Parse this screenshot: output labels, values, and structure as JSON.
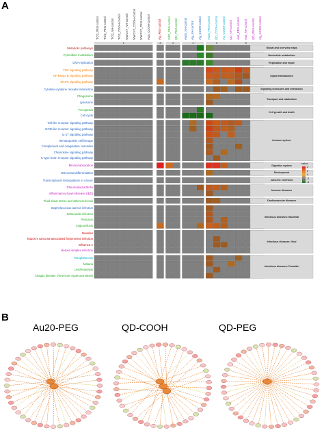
{
  "panel_a": {
    "letter": "A",
    "columns": [
      {
        "label": "TiO2_PEG-control",
        "color": "#333333"
      },
      {
        "label": "TiO2_PEG-control",
        "color": "#333333"
      },
      {
        "label": "TiO2_NH-control",
        "color": "#333333"
      },
      {
        "label": "TiO2_COOH-control",
        "color": "#333333"
      },
      {
        "label": "MWCNT_NH-control",
        "color": "#333333"
      },
      {
        "label": "MWCNT_COOH-control",
        "color": "#333333"
      },
      {
        "label": "MWCNT_PEG-control",
        "color": "#333333"
      },
      {
        "label": "AuS_COOH-control",
        "color": "#333333"
      },
      {
        "label": "Ag_PEG-control",
        "color": "#d00000"
      },
      {
        "label": "CdO_PEG-control",
        "color": "#22aa22"
      },
      {
        "label": "QD_PEG-control",
        "color": "#22aa22"
      },
      {
        "label": "Au20_NH-control",
        "color": "#1f5fbf"
      },
      {
        "label": "Ag_NH-control",
        "color": "#1f5fbf"
      },
      {
        "label": "Ag_COOH-control",
        "color": "#1f5fbf"
      },
      {
        "label": "Au20_PEG-control",
        "color": "#00b0d0"
      },
      {
        "label": "QD_COOH-control",
        "color": "#00b0d0"
      },
      {
        "label": "Au_COOH-control",
        "color": "#00b0d0"
      },
      {
        "label": "QD_NH-control",
        "color": "#c020c0"
      },
      {
        "label": "Au5_PEG-control",
        "color": "#c020c0"
      },
      {
        "label": "Au5_NH-control",
        "color": "#c020c0"
      },
      {
        "label": "QD_PEG-control",
        "color": "#c020c0"
      },
      {
        "label": "Ag_COOH-control",
        "color": "#c020c0"
      }
    ],
    "group_numbers": [
      "1",
      "2",
      "3",
      "4",
      "5",
      "6"
    ],
    "rows": [
      {
        "label": "Metabolic pathways",
        "color": "#b02020",
        "group": 0
      },
      {
        "label": "Pyrimidine metabolism",
        "color": "#22aa22",
        "group": 1
      },
      {
        "label": "DNA replication",
        "color": "#1f5fbf",
        "group": 2
      },
      {
        "label": "TNF signaling pathway",
        "color": "#ff7f00",
        "group": 3
      },
      {
        "label": "NF-kappa B signaling pathway",
        "color": "#ff7f00",
        "group": 3
      },
      {
        "label": "MAPK signaling pathway",
        "color": "#ff7f00",
        "group": 3
      },
      {
        "label": "Cytokine-cytokine receptor interaction",
        "color": "#1f5fbf",
        "group": 4
      },
      {
        "label": "Phagosome",
        "color": "#22aa22",
        "group": 5
      },
      {
        "label": "Lysosome",
        "color": "#1f5fbf",
        "group": 5
      },
      {
        "label": "Ferroptosis",
        "color": "#22aa22",
        "group": 6
      },
      {
        "label": "Cell cycle",
        "color": "#1f5fbf",
        "group": 6
      },
      {
        "label": "Toll-like receptor signaling pathway",
        "color": "#1f5fbf",
        "group": 7
      },
      {
        "label": "NOD-like receptor signaling pathway",
        "color": "#1f5fbf",
        "group": 7
      },
      {
        "label": "IL-17 signaling pathway",
        "color": "#1f5fbf",
        "group": 7
      },
      {
        "label": "Hematopoietic cell lineage",
        "color": "#1f5fbf",
        "group": 7
      },
      {
        "label": "Complement and coagulation cascades",
        "color": "#1f5fbf",
        "group": 7
      },
      {
        "label": "Chemokine signaling pathway",
        "color": "#1f5fbf",
        "group": 7
      },
      {
        "label": "C-type lectin receptor signaling pathway",
        "color": "#1f5fbf",
        "group": 7
      },
      {
        "label": "Mineral absorption",
        "color": "#c020c0",
        "group": 8
      },
      {
        "label": "Osteoclast differentiation",
        "color": "#1f5fbf",
        "group": 9
      },
      {
        "label": "Transcriptional misregulation in cancer",
        "color": "#1f5fbf",
        "group": 10
      },
      {
        "label": "Rheumatoid arthritis",
        "color": "#c020c0",
        "group": 11
      },
      {
        "label": "Inflammatory bowel disease (IBD)",
        "color": "#c020c0",
        "group": 11
      },
      {
        "label": "Fluid shear stress and atherosclerosis",
        "color": "#22aa22",
        "group": 12
      },
      {
        "label": "Staphylococcus aureus infection",
        "color": "#1f5fbf",
        "group": 13
      },
      {
        "label": "Salmonella infection",
        "color": "#22aa22",
        "group": 13
      },
      {
        "label": "Pertussis",
        "color": "#22aa22",
        "group": 13
      },
      {
        "label": "Legionellosis",
        "color": "#22aa22",
        "group": 13
      },
      {
        "label": "Measles",
        "color": "#d00000",
        "group": 14
      },
      {
        "label": "Kaposi's sarcoma-associated herpesvirus infection",
        "color": "#d00000",
        "group": 14
      },
      {
        "label": "Influenza A",
        "color": "#d00000",
        "group": 14
      },
      {
        "label": "Herpes simplex infection",
        "color": "#c020c0",
        "group": 14
      },
      {
        "label": "Toxoplasmosis",
        "color": "#00b0d0",
        "group": 15
      },
      {
        "label": "Malaria",
        "color": "#22aa22",
        "group": 15
      },
      {
        "label": "Leishmaniasis",
        "color": "#22aa22",
        "group": 15
      },
      {
        "label": "Chagas disease (American trypanosomiasis)",
        "color": "#22aa22",
        "group": 15
      }
    ],
    "categories": [
      "Global and overview maps",
      "Nucleotide metabolism",
      "Replication and repair",
      "Signal transduction",
      "Signaling molecules and interaction",
      "Transport and catabolism",
      "Cell growth and death",
      "Immune system",
      "Digestive system",
      "Development",
      "Cancers: Overview",
      "Immune diseases",
      "Cardiovascular diseases",
      "Infectious diseases: Bacterial",
      "Infectious diseases: Viral",
      "Infectious diseases: Parasitic"
    ],
    "legend": {
      "title": "value",
      "ticks": [
        "4",
        "2",
        "0",
        "-2",
        "-4"
      ],
      "colors": [
        "#d7191c",
        "#e8742a",
        "#f0b040",
        "#808080",
        "#1a7a1a"
      ]
    }
  },
  "panel_b": {
    "letter": "B",
    "titles": [
      "Au20-PEG",
      "QD-COOH",
      "QD-PEG"
    ]
  }
}
